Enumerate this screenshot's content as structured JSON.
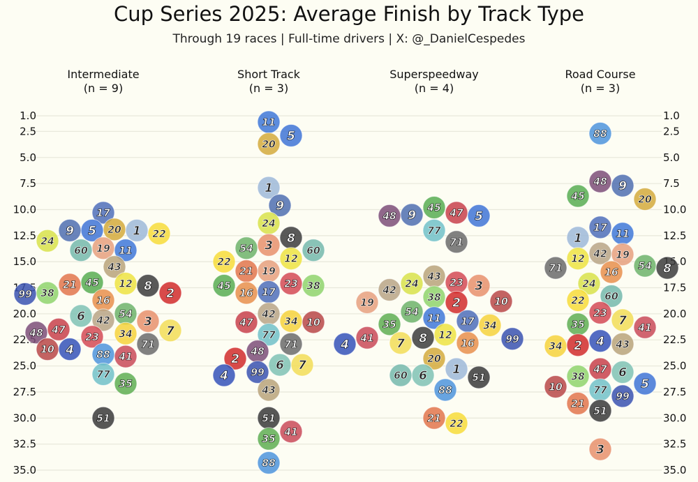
{
  "chart_data": {
    "type": "scatter",
    "title": "Cup Series 2025: Average Finish by Track Type",
    "subtitle": "Through 19 races | Full-time drivers | X: @_DanielCespedes",
    "y_reversed": true,
    "ylim": [
      1.0,
      35.0
    ],
    "yticks": [
      "1.0",
      "2.5",
      "5.0",
      "7.5",
      "10.0",
      "12.5",
      "15.0",
      "17.5",
      "20.0",
      "22.5",
      "25.0",
      "27.5",
      "30.0",
      "32.5",
      "35.0"
    ],
    "grid": true,
    "legend": "none",
    "car_colors": {
      "1": "#9db9d8",
      "2": "#d12b2b",
      "3": "#e8906c",
      "4": "#3552b8",
      "5": "#3f74d6",
      "6": "#7fc2b4",
      "7": "#f2dd57",
      "8": "#3c3c3c",
      "9": "#4f6fb0",
      "10": "#b84848",
      "11": "#3f78d8",
      "12": "#ede342",
      "16": "#e88f4c",
      "17": "#4f6fba",
      "19": "#e6a07e",
      "20": "#d4aa3c",
      "21": "#e2764c",
      "22": "#f7dc3a",
      "23": "#d44a55",
      "24": "#d8e24a",
      "34": "#f6d23c",
      "35": "#5fae52",
      "38": "#8fd46c",
      "41": "#c94a58",
      "42": "#b8a486",
      "43": "#b8a37a",
      "45": "#58ad52",
      "47": "#c8414b",
      "48": "#7d4e78",
      "51": "#3a3a3a",
      "54": "#6db36a",
      "60": "#74b8ac",
      "71": "#6b6b6b",
      "77": "#71c1c8",
      "88": "#4d94dc",
      "99": "#3a52b0"
    },
    "facets": [
      {
        "name": "Intermediate",
        "n_label": "(n = 9)",
        "points": [
          {
            "car": "17",
            "avg": 10.3
          },
          {
            "car": "5",
            "avg": 12.0
          },
          {
            "car": "20",
            "avg": 11.9
          },
          {
            "car": "22",
            "avg": 12.3
          },
          {
            "car": "1",
            "avg": 12.0
          },
          {
            "car": "9",
            "avg": 12.0
          },
          {
            "car": "24",
            "avg": 13.0
          },
          {
            "car": "11",
            "avg": 13.9
          },
          {
            "car": "60",
            "avg": 13.9
          },
          {
            "car": "19",
            "avg": 13.7
          },
          {
            "car": "43",
            "avg": 15.5
          },
          {
            "car": "12",
            "avg": 17.1
          },
          {
            "car": "21",
            "avg": 17.2
          },
          {
            "car": "8",
            "avg": 17.3
          },
          {
            "car": "45",
            "avg": 17.0
          },
          {
            "car": "38",
            "avg": 18.0
          },
          {
            "car": "99",
            "avg": 18.1
          },
          {
            "car": "2",
            "avg": 18.0
          },
          {
            "car": "16",
            "avg": 18.7
          },
          {
            "car": "6",
            "avg": 20.2
          },
          {
            "car": "42",
            "avg": 20.6
          },
          {
            "car": "54",
            "avg": 20.0
          },
          {
            "car": "3",
            "avg": 20.7
          },
          {
            "car": "47",
            "avg": 21.5
          },
          {
            "car": "48",
            "avg": 21.8
          },
          {
            "car": "7",
            "avg": 21.6
          },
          {
            "car": "34",
            "avg": 21.9
          },
          {
            "car": "23",
            "avg": 22.2
          },
          {
            "car": "71",
            "avg": 22.9
          },
          {
            "car": "4",
            "avg": 23.4
          },
          {
            "car": "10",
            "avg": 23.4
          },
          {
            "car": "88",
            "avg": 23.9
          },
          {
            "car": "41",
            "avg": 24.1
          },
          {
            "car": "77",
            "avg": 25.8
          },
          {
            "car": "35",
            "avg": 26.7
          },
          {
            "car": "51",
            "avg": 30.0
          }
        ]
      },
      {
        "name": "Short Track",
        "n_label": "(n = 3)",
        "points": [
          {
            "car": "11",
            "avg": 1.6
          },
          {
            "car": "5",
            "avg": 2.9
          },
          {
            "car": "20",
            "avg": 3.7
          },
          {
            "car": "1",
            "avg": 7.9
          },
          {
            "car": "9",
            "avg": 9.6
          },
          {
            "car": "24",
            "avg": 11.3
          },
          {
            "car": "8",
            "avg": 12.7
          },
          {
            "car": "3",
            "avg": 13.4
          },
          {
            "car": "54",
            "avg": 13.7
          },
          {
            "car": "60",
            "avg": 13.9
          },
          {
            "car": "12",
            "avg": 14.7
          },
          {
            "car": "22",
            "avg": 15.0
          },
          {
            "car": "19",
            "avg": 15.9
          },
          {
            "car": "21",
            "avg": 15.9
          },
          {
            "car": "23",
            "avg": 17.1
          },
          {
            "car": "38",
            "avg": 17.3
          },
          {
            "car": "16",
            "avg": 18.0
          },
          {
            "car": "17",
            "avg": 17.9
          },
          {
            "car": "45",
            "avg": 17.3
          },
          {
            "car": "42",
            "avg": 20.0
          },
          {
            "car": "34",
            "avg": 20.7
          },
          {
            "car": "47",
            "avg": 20.8
          },
          {
            "car": "10",
            "avg": 20.8
          },
          {
            "car": "77",
            "avg": 22.0
          },
          {
            "car": "71",
            "avg": 22.9
          },
          {
            "car": "48",
            "avg": 23.6
          },
          {
            "car": "2",
            "avg": 24.3
          },
          {
            "car": "6",
            "avg": 24.9
          },
          {
            "car": "7",
            "avg": 24.9
          },
          {
            "car": "99",
            "avg": 25.6
          },
          {
            "car": "4",
            "avg": 25.9
          },
          {
            "car": "43",
            "avg": 27.3
          },
          {
            "car": "51",
            "avg": 30.0
          },
          {
            "car": "41",
            "avg": 31.3
          },
          {
            "car": "35",
            "avg": 32.0
          },
          {
            "car": "88",
            "avg": 34.3
          }
        ]
      },
      {
        "name": "Superspeedway",
        "n_label": "(n = 4)",
        "points": [
          {
            "car": "45",
            "avg": 9.8
          },
          {
            "car": "5",
            "avg": 10.6
          },
          {
            "car": "9",
            "avg": 10.5
          },
          {
            "car": "47",
            "avg": 10.3
          },
          {
            "car": "48",
            "avg": 10.6
          },
          {
            "car": "77",
            "avg": 12.0
          },
          {
            "car": "71",
            "avg": 13.1
          },
          {
            "car": "23",
            "avg": 17.0
          },
          {
            "car": "24",
            "avg": 17.1
          },
          {
            "car": "3",
            "avg": 17.3
          },
          {
            "car": "43",
            "avg": 16.4
          },
          {
            "car": "42",
            "avg": 17.7
          },
          {
            "car": "38",
            "avg": 18.4
          },
          {
            "car": "10",
            "avg": 18.8
          },
          {
            "car": "2",
            "avg": 18.9
          },
          {
            "car": "19",
            "avg": 18.9
          },
          {
            "car": "54",
            "avg": 19.8
          },
          {
            "car": "11",
            "avg": 20.4
          },
          {
            "car": "17",
            "avg": 20.7
          },
          {
            "car": "35",
            "avg": 21.0
          },
          {
            "car": "34",
            "avg": 21.1
          },
          {
            "car": "8",
            "avg": 22.3
          },
          {
            "car": "12",
            "avg": 22.0
          },
          {
            "car": "41",
            "avg": 22.3
          },
          {
            "car": "99",
            "avg": 22.4
          },
          {
            "car": "16",
            "avg": 22.8
          },
          {
            "car": "7",
            "avg": 22.8
          },
          {
            "car": "4",
            "avg": 22.9
          },
          {
            "car": "20",
            "avg": 24.3
          },
          {
            "car": "1",
            "avg": 25.3
          },
          {
            "car": "6",
            "avg": 25.9
          },
          {
            "car": "60",
            "avg": 25.9
          },
          {
            "car": "51",
            "avg": 26.1
          },
          {
            "car": "88",
            "avg": 27.3
          },
          {
            "car": "21",
            "avg": 30.0
          },
          {
            "car": "22",
            "avg": 30.5
          }
        ]
      },
      {
        "name": "Road Course",
        "n_label": "(n = 3)",
        "points": [
          {
            "car": "88",
            "avg": 2.7
          },
          {
            "car": "48",
            "avg": 7.3
          },
          {
            "car": "9",
            "avg": 7.7
          },
          {
            "car": "45",
            "avg": 8.7
          },
          {
            "car": "20",
            "avg": 9.0
          },
          {
            "car": "17",
            "avg": 11.7
          },
          {
            "car": "11",
            "avg": 12.3
          },
          {
            "car": "1",
            "avg": 12.7
          },
          {
            "car": "42",
            "avg": 14.2
          },
          {
            "car": "19",
            "avg": 14.3
          },
          {
            "car": "12",
            "avg": 14.7
          },
          {
            "car": "54",
            "avg": 15.4
          },
          {
            "car": "71",
            "avg": 15.6
          },
          {
            "car": "16",
            "avg": 16.0
          },
          {
            "car": "8",
            "avg": 15.6
          },
          {
            "car": "24",
            "avg": 17.1
          },
          {
            "car": "60",
            "avg": 18.3
          },
          {
            "car": "22",
            "avg": 18.7
          },
          {
            "car": "23",
            "avg": 19.9
          },
          {
            "car": "7",
            "avg": 20.6
          },
          {
            "car": "35",
            "avg": 21.0
          },
          {
            "car": "41",
            "avg": 21.3
          },
          {
            "car": "4",
            "avg": 22.6
          },
          {
            "car": "43",
            "avg": 22.9
          },
          {
            "car": "2",
            "avg": 23.0
          },
          {
            "car": "34",
            "avg": 23.1
          },
          {
            "car": "47",
            "avg": 25.3
          },
          {
            "car": "6",
            "avg": 25.6
          },
          {
            "car": "38",
            "avg": 26.0
          },
          {
            "car": "5",
            "avg": 26.7
          },
          {
            "car": "10",
            "avg": 27.0
          },
          {
            "car": "77",
            "avg": 27.3
          },
          {
            "car": "99",
            "avg": 27.9
          },
          {
            "car": "21",
            "avg": 28.6
          },
          {
            "car": "51",
            "avg": 29.3
          },
          {
            "car": "3",
            "avg": 33.0
          }
        ]
      }
    ]
  }
}
